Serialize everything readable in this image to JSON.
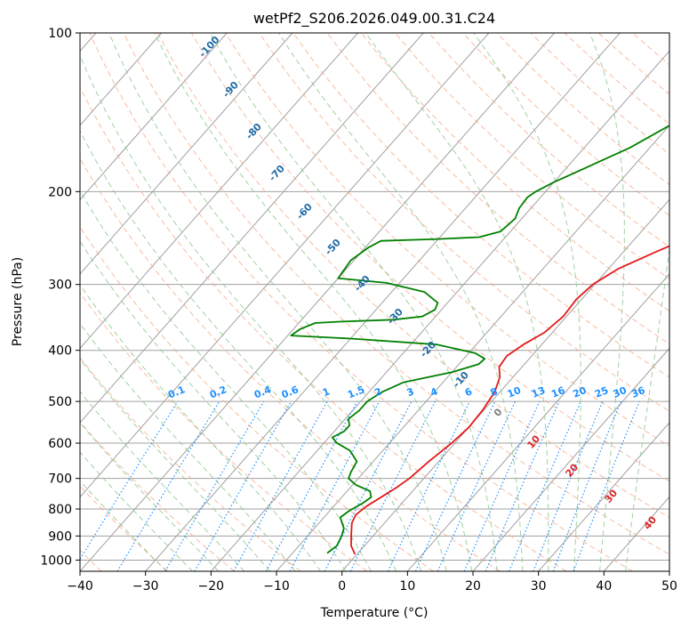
{
  "chart_data": {
    "type": "line",
    "title": "wetPf2_S206.2026.049.00.31.C24",
    "xlabel": "Temperature (°C)",
    "ylabel": "Pressure (hPa)",
    "xlim": [
      -40,
      50
    ],
    "ylim": [
      1050,
      100
    ],
    "y_scale": "log",
    "grid": true,
    "x_ticks": [
      -40,
      -30,
      -20,
      -10,
      0,
      10,
      20,
      30,
      40,
      50
    ],
    "y_ticks": [
      1000,
      900,
      800,
      700,
      600,
      500,
      400,
      300,
      200,
      100
    ],
    "series": [
      {
        "color": "#e41a1c",
        "points": [
          [
            -0.3,
            975
          ],
          [
            -2,
            940
          ],
          [
            -3.5,
            895
          ],
          [
            -5,
            850
          ],
          [
            -5.5,
            820
          ],
          [
            -5,
            790
          ],
          [
            -4,
            760
          ],
          [
            -3,
            730
          ],
          [
            -2.2,
            700
          ],
          [
            -1.5,
            650
          ],
          [
            -0.5,
            600
          ],
          [
            0,
            560
          ],
          [
            -0.2,
            520
          ],
          [
            -0.8,
            480
          ],
          [
            -2,
            450
          ],
          [
            -3.5,
            430
          ],
          [
            -3.8,
            410
          ],
          [
            -2.8,
            390
          ],
          [
            -1.2,
            370
          ],
          [
            -0.5,
            345
          ],
          [
            -0.8,
            320
          ],
          [
            -0.3,
            300
          ],
          [
            1.5,
            280
          ],
          [
            5,
            260
          ],
          [
            9,
            240
          ],
          [
            13,
            220
          ],
          [
            17,
            200
          ],
          [
            19,
            185
          ],
          [
            20,
            170
          ],
          [
            21.5,
            160
          ],
          [
            24,
            150
          ],
          [
            27,
            140
          ],
          [
            29.5,
            130
          ],
          [
            31,
            120
          ],
          [
            33,
            112
          ],
          [
            35,
            106
          ],
          [
            35.5,
            102
          ],
          [
            35.5,
            100
          ]
        ]
      },
      {
        "color": "#008000",
        "points": [
          [
            -4.7,
            970
          ],
          [
            -4.2,
            940
          ],
          [
            -4.8,
            900
          ],
          [
            -5.5,
            870
          ],
          [
            -6.5,
            850
          ],
          [
            -7.5,
            830
          ],
          [
            -7,
            805
          ],
          [
            -6,
            780
          ],
          [
            -5.5,
            760
          ],
          [
            -6.5,
            740
          ],
          [
            -9.5,
            720
          ],
          [
            -11.5,
            700
          ],
          [
            -12,
            680
          ],
          [
            -12.5,
            650
          ],
          [
            -15,
            620
          ],
          [
            -18,
            600
          ],
          [
            -19.5,
            585
          ],
          [
            -18.5,
            570
          ],
          [
            -18.5,
            555
          ],
          [
            -19.5,
            540
          ],
          [
            -19,
            520
          ],
          [
            -19,
            500
          ],
          [
            -18,
            480
          ],
          [
            -16,
            460
          ],
          [
            -10,
            440
          ],
          [
            -7,
            425
          ],
          [
            -6.8,
            415
          ],
          [
            -9,
            405
          ],
          [
            -16,
            390
          ],
          [
            -30,
            380
          ],
          [
            -39.5,
            375
          ],
          [
            -39,
            365
          ],
          [
            -37.5,
            355
          ],
          [
            -34,
            353
          ],
          [
            -26,
            350
          ],
          [
            -22,
            345
          ],
          [
            -21,
            335
          ],
          [
            -21.5,
            325
          ],
          [
            -25,
            310
          ],
          [
            -32,
            298
          ],
          [
            -40,
            292
          ],
          [
            -40.5,
            270
          ],
          [
            -39.5,
            255
          ],
          [
            -38.5,
            248
          ],
          [
            -30,
            246
          ],
          [
            -24,
            244
          ],
          [
            -21.5,
            238
          ],
          [
            -21,
            225
          ],
          [
            -21.8,
            215
          ],
          [
            -22,
            205
          ],
          [
            -21.5,
            200
          ],
          [
            -20,
            192
          ],
          [
            -17,
            180
          ],
          [
            -13,
            165
          ],
          [
            -10,
            150
          ],
          [
            -7.5,
            135
          ],
          [
            -5.5,
            120
          ],
          [
            -3,
            108
          ],
          [
            -1,
            100
          ]
        ]
      }
    ],
    "dry_adiabat_labels": [
      "-100",
      "-90",
      "-80",
      "-70",
      "-60",
      "-50",
      "-40",
      "-30",
      "-20",
      "-10"
    ],
    "mixing_ratio_labels": [
      "0.1",
      "0.2",
      "0.4",
      "0.6",
      "1",
      "1.5",
      "2",
      "3",
      "4",
      "6",
      "8",
      "10",
      "13",
      "16",
      "20",
      "25",
      "30",
      "36"
    ],
    "moist_adiabat_labels": [
      "0",
      "10",
      "20",
      "30",
      "40"
    ],
    "colors": {
      "temperature": "#e41a1c",
      "dewpoint": "#008000",
      "isotherm": "#a0a0a0",
      "dry_adiabat": "#f4a582",
      "moist_adiabat": "#8fc98f",
      "mixing_ratio": "#1e90ff"
    }
  }
}
